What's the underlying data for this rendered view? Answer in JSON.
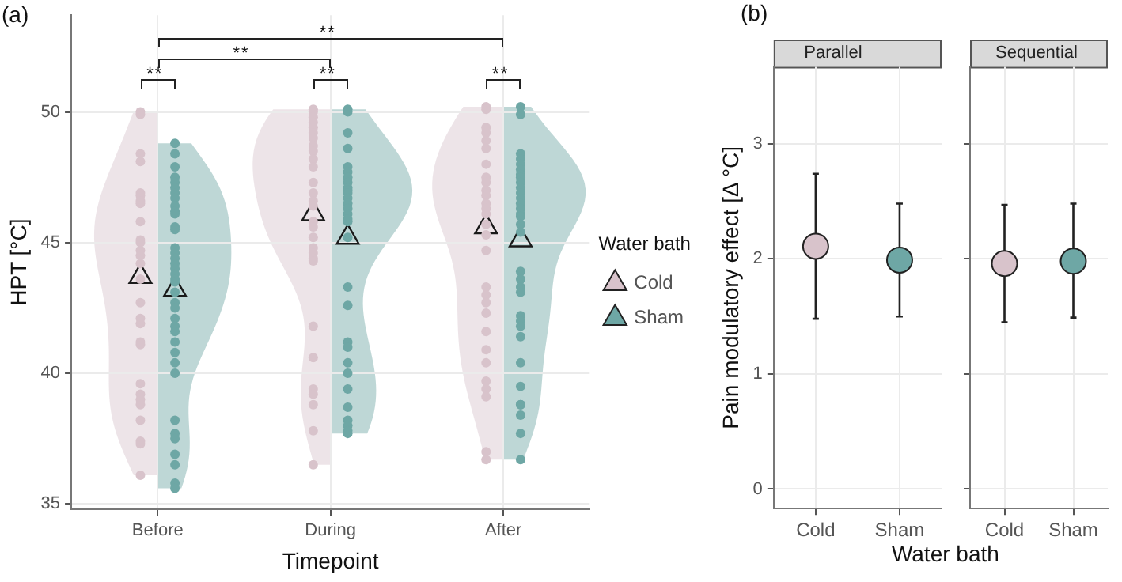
{
  "chart_data": [
    {
      "type": "scatter",
      "title": "(a)",
      "xlabel": "Timepoint",
      "ylabel": "HPT [°C]",
      "legend_title": "Water bath",
      "legend": "right",
      "grid": true,
      "categories": [
        "Before",
        "During",
        "After"
      ],
      "ylim": [
        34.8,
        53.7
      ],
      "yticks": [
        35,
        40,
        45,
        50
      ],
      "annotations": [
        "**",
        "**",
        "**",
        "**",
        "**"
      ],
      "series": [
        {
          "name": "Cold",
          "color": "#d8c3cb",
          "marker": "circle",
          "x": [
            "Before",
            "Before",
            "Before",
            "Before",
            "Before",
            "Before",
            "Before",
            "Before",
            "Before",
            "Before",
            "Before",
            "Before",
            "Before",
            "Before",
            "Before",
            "Before",
            "Before",
            "Before",
            "Before",
            "Before",
            "Before",
            "Before",
            "Before",
            "Before",
            "Before",
            "Before",
            "Before",
            "Before",
            "During",
            "During",
            "During",
            "During",
            "During",
            "During",
            "During",
            "During",
            "During",
            "During",
            "During",
            "During",
            "During",
            "During",
            "During",
            "During",
            "During",
            "During",
            "During",
            "During",
            "During",
            "During",
            "During",
            "During",
            "During",
            "During",
            "During",
            "During",
            "During",
            "After",
            "After",
            "After",
            "After",
            "After",
            "After",
            "After",
            "After",
            "After",
            "After",
            "After",
            "After",
            "After",
            "After",
            "After",
            "After",
            "After",
            "After",
            "After",
            "After",
            "After",
            "After",
            "After",
            "After",
            "After",
            "After",
            "After",
            "After",
            "After"
          ],
          "values": [
            50,
            49.9,
            48.4,
            48.1,
            46.9,
            46.8,
            46.6,
            46.5,
            45.8,
            45.1,
            45.0,
            44.7,
            44.5,
            44.2,
            43.6,
            42.7,
            42.1,
            41.9,
            41.2,
            41.1,
            39.6,
            39.2,
            39.0,
            38.8,
            38.2,
            37.4,
            37.3,
            36.1,
            50.1,
            50,
            49.8,
            49.6,
            49.4,
            49.2,
            49.0,
            48.7,
            48.5,
            48.2,
            47.9,
            47.3,
            46.9,
            46.6,
            46.4,
            45.8,
            45.6,
            45.2,
            44.8,
            44.6,
            44.4,
            44.3,
            41.8,
            40.6,
            39.4,
            39.2,
            38.8,
            37.8,
            36.5,
            50.2,
            50.1,
            49.4,
            49.2,
            48.9,
            48.6,
            48.0,
            47.5,
            47.3,
            47.0,
            46.8,
            46.5,
            46.3,
            46.1,
            45.7,
            45.3,
            44.7,
            43.3,
            43.0,
            42.7,
            42.3,
            41.6,
            40.9,
            40.4,
            39.7,
            39.4,
            39.1,
            37.0,
            36.7
          ]
        },
        {
          "name": "Sham",
          "color": "#6ea7a5",
          "marker": "circle",
          "x": [
            "Before",
            "Before",
            "Before",
            "Before",
            "Before",
            "Before",
            "Before",
            "Before",
            "Before",
            "Before",
            "Before",
            "Before",
            "Before",
            "Before",
            "Before",
            "Before",
            "Before",
            "Before",
            "Before",
            "Before",
            "Before",
            "Before",
            "Before",
            "Before",
            "Before",
            "Before",
            "Before",
            "Before",
            "Before",
            "Before",
            "Before",
            "Before",
            "Before",
            "Before",
            "Before",
            "Before",
            "Before",
            "Before",
            "During",
            "During",
            "During",
            "During",
            "During",
            "During",
            "During",
            "During",
            "During",
            "During",
            "During",
            "During",
            "During",
            "During",
            "During",
            "During",
            "During",
            "During",
            "During",
            "During",
            "During",
            "During",
            "During",
            "During",
            "During",
            "During",
            "During",
            "During",
            "During",
            "During",
            "After",
            "After",
            "After",
            "After",
            "After",
            "After",
            "After",
            "After",
            "After",
            "After",
            "After",
            "After",
            "After",
            "After",
            "After",
            "After",
            "After",
            "After",
            "After",
            "After",
            "After",
            "After",
            "After",
            "After",
            "After",
            "After",
            "After",
            "After",
            "After",
            "After",
            "After",
            "After",
            "After"
          ],
          "values": [
            48.8,
            48.4,
            47.9,
            47.5,
            47.3,
            47.1,
            46.9,
            46.7,
            46.4,
            46.2,
            46.1,
            45.6,
            45.5,
            44.8,
            44.6,
            44.4,
            44.2,
            44.0,
            43.8,
            43.6,
            43.5,
            43.1,
            42.7,
            42.5,
            42.1,
            41.8,
            41.6,
            41.2,
            40.8,
            40.4,
            40.0,
            38.2,
            37.7,
            37.5,
            36.9,
            36.5,
            35.8,
            35.6,
            50.1,
            50,
            49.2,
            48.6,
            47.9,
            47.7,
            47.5,
            47.3,
            47.1,
            47.0,
            46.9,
            46.7,
            46.5,
            46.3,
            46.1,
            45.9,
            45.8,
            45.2,
            43.3,
            42.6,
            41.2,
            41.0,
            40.4,
            40.0,
            39.4,
            38.7,
            38.2,
            38.0,
            37.8,
            37.7,
            50.2,
            49.9,
            48.4,
            48.2,
            48.0,
            47.8,
            47.6,
            47.5,
            47.3,
            47.1,
            46.9,
            46.7,
            46.5,
            46.3,
            46.1,
            46.0,
            45.7,
            45.4,
            43.9,
            43.6,
            43.3,
            43.1,
            42.2,
            42.0,
            41.8,
            41.4,
            40.4,
            39.5,
            38.8,
            38.8,
            38.4,
            37.7,
            36.7
          ]
        },
        {
          "color": "#1a1a1a",
          "marker": "triangle",
          "x": [
            "Before",
            "During",
            "After"
          ],
          "values": [
            43.7,
            46.1,
            45.6
          ]
        },
        {
          "color": "#1a1a1a",
          "marker": "triangle",
          "x": [
            "Before",
            "During",
            "After"
          ],
          "values": [
            43.2,
            45.2,
            45.1
          ]
        }
      ]
    },
    {
      "type": "scatter",
      "title": "Parallel",
      "annotations": [
        "(b)"
      ],
      "xlabel": "Water bath",
      "ylabel": "Pain modulatory effect [Δ °C]",
      "grid": true,
      "marker": "circle",
      "categories": [
        "Cold",
        "Sham"
      ],
      "ylim": [
        -0.17,
        3.67
      ],
      "yticks": [
        0,
        1,
        2,
        3
      ],
      "series": [
        {
          "colors": [
            "#d8c3cb",
            "#6ea7a5"
          ],
          "values": [
            2.11,
            1.99
          ],
          "errors": [
            [
              1.48,
              2.74
            ],
            [
              1.5,
              2.48
            ]
          ]
        }
      ]
    },
    {
      "type": "scatter",
      "title": "Sequential",
      "grid": true,
      "marker": "circle",
      "tick_labels": "x",
      "categories": [
        "Cold",
        "Sham"
      ],
      "ylim": [
        -0.17,
        3.67
      ],
      "yticks": [
        0,
        1,
        2,
        3
      ],
      "series": [
        {
          "colors": [
            "#d8c3cb",
            "#6ea7a5"
          ],
          "values": [
            1.96,
            1.98
          ],
          "errors": [
            [
              1.45,
              2.47
            ],
            [
              1.49,
              2.48
            ]
          ]
        }
      ]
    }
  ]
}
